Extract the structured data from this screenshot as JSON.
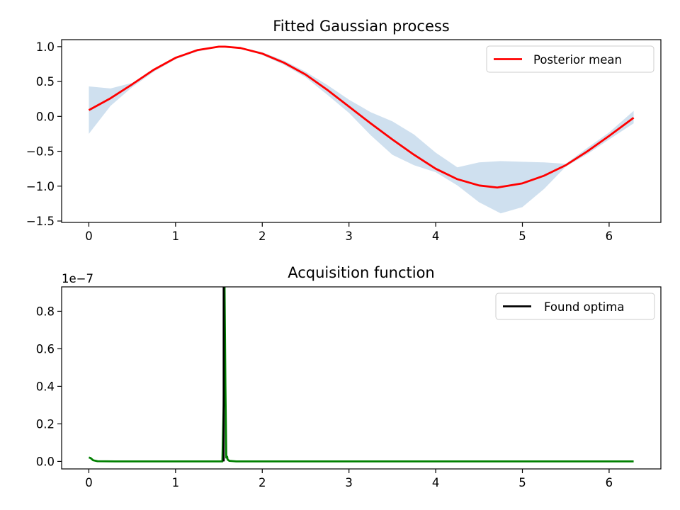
{
  "chart_data": [
    {
      "type": "line",
      "title": "Fitted Gaussian process",
      "xlabel": "",
      "ylabel": "",
      "xlim": [
        -0.314,
        6.597
      ],
      "ylim": [
        -1.52,
        1.1
      ],
      "xticks": [
        0,
        1,
        2,
        3,
        4,
        5,
        6
      ],
      "yticks": [
        -1.5,
        -1.0,
        -0.5,
        0.0,
        0.5,
        1.0
      ],
      "ytick_labels": [
        "−1.5",
        "−1.0",
        "−0.5",
        "0.0",
        "0.5",
        "1.0"
      ],
      "grid": false,
      "legend": {
        "position": "top-right",
        "entries": [
          {
            "label": "Posterior mean",
            "color": "#ff0000"
          }
        ]
      },
      "series": [
        {
          "name": "Posterior mean",
          "color": "#ff0000",
          "x": [
            0,
            0.25,
            0.5,
            0.75,
            1.0,
            1.25,
            1.5,
            1.571,
            1.75,
            2.0,
            2.25,
            2.5,
            2.75,
            3.0,
            3.25,
            3.5,
            3.75,
            4.0,
            4.25,
            4.5,
            4.71,
            5.0,
            5.25,
            5.5,
            5.75,
            6.0,
            6.283
          ],
          "y": [
            0.09,
            0.26,
            0.46,
            0.67,
            0.84,
            0.95,
            1.0,
            1.0,
            0.98,
            0.9,
            0.77,
            0.6,
            0.38,
            0.14,
            -0.1,
            -0.33,
            -0.55,
            -0.75,
            -0.9,
            -0.99,
            -1.02,
            -0.96,
            -0.85,
            -0.7,
            -0.5,
            -0.28,
            -0.02
          ]
        }
      ],
      "band": {
        "color": "#cfe0ef",
        "x": [
          0,
          0.25,
          0.5,
          0.75,
          1.0,
          1.25,
          1.5,
          1.75,
          2.0,
          2.25,
          2.5,
          2.75,
          3.0,
          3.25,
          3.5,
          3.75,
          4.0,
          4.25,
          4.5,
          4.75,
          5.0,
          5.25,
          5.5,
          5.75,
          6.0,
          6.283
        ],
        "upper": [
          0.43,
          0.4,
          0.48,
          0.68,
          0.85,
          0.96,
          1.01,
          0.99,
          0.92,
          0.8,
          0.64,
          0.45,
          0.24,
          0.06,
          -0.07,
          -0.26,
          -0.52,
          -0.73,
          -0.66,
          -0.64,
          -0.65,
          -0.66,
          -0.68,
          -0.45,
          -0.23,
          0.08
        ],
        "lower": [
          -0.25,
          0.15,
          0.42,
          0.64,
          0.82,
          0.93,
          0.99,
          0.97,
          0.88,
          0.74,
          0.56,
          0.31,
          0.05,
          -0.27,
          -0.55,
          -0.7,
          -0.8,
          -0.99,
          -1.23,
          -1.39,
          -1.3,
          -1.04,
          -0.72,
          -0.54,
          -0.33,
          -0.1
        ]
      }
    },
    {
      "type": "line",
      "title": "Acquisition function",
      "xlabel": "",
      "ylabel": "",
      "xlim": [
        -0.314,
        6.597
      ],
      "ylim": [
        -0.04,
        0.93
      ],
      "y_offset_text": "1e−7",
      "xticks": [
        0,
        1,
        2,
        3,
        4,
        5,
        6
      ],
      "yticks": [
        0.0,
        0.2,
        0.4,
        0.6,
        0.8
      ],
      "ytick_labels": [
        "0.0",
        "0.2",
        "0.4",
        "0.6",
        "0.8"
      ],
      "grid": false,
      "legend": {
        "position": "top-right",
        "entries": [
          {
            "label": "Found optima",
            "color": "#000000"
          }
        ]
      },
      "series": [
        {
          "color": "#008000",
          "x": [
            0,
            0.02,
            0.05,
            0.1,
            0.3,
            0.8,
            1.2,
            1.5,
            1.54,
            1.555,
            1.565,
            1.575,
            1.585,
            1.595,
            1.6,
            1.62,
            1.7,
            2.0,
            3.0,
            4.0,
            5.0,
            6.0,
            6.283
          ],
          "y": [
            0.021,
            0.018,
            0.006,
            0.001,
            0.0,
            0.0,
            0.0,
            0.0,
            0.0,
            0.3,
            0.93,
            0.4,
            0.02,
            0.025,
            0.01,
            0.003,
            0.0,
            0.0,
            0.0,
            0.0,
            0.0,
            0.0,
            0.0
          ]
        },
        {
          "name": "Found optima",
          "color": "#000000",
          "x": [
            1.555,
            1.555
          ],
          "y": [
            0.0,
            0.93
          ]
        }
      ]
    }
  ]
}
